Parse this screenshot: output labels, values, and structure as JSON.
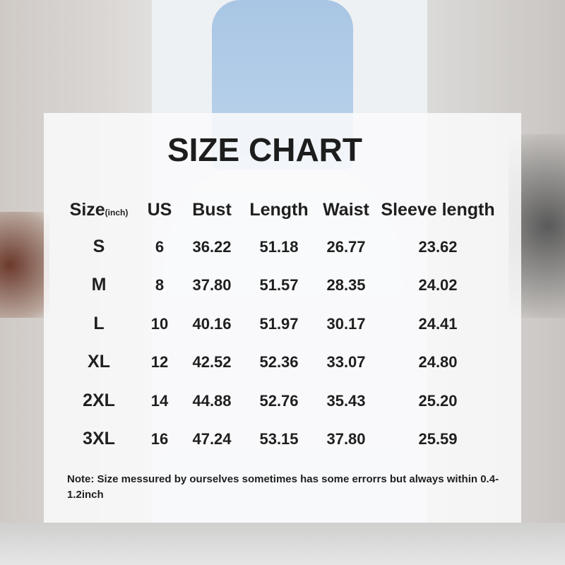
{
  "title": "SIZE CHART",
  "table": {
    "headers": [
      "Size",
      "US",
      "Bust",
      "Length",
      "Waist",
      "Sleeve length"
    ],
    "size_unit": "(inch)",
    "rows": [
      [
        "S",
        "6",
        "36.22",
        "51.18",
        "26.77",
        "23.62"
      ],
      [
        "M",
        "8",
        "37.80",
        "51.57",
        "28.35",
        "24.02"
      ],
      [
        "L",
        "10",
        "40.16",
        "51.97",
        "30.17",
        "24.41"
      ],
      [
        "XL",
        "12",
        "42.52",
        "52.36",
        "33.07",
        "24.80"
      ],
      [
        "2XL",
        "14",
        "44.88",
        "52.76",
        "35.43",
        "25.20"
      ],
      [
        "3XL",
        "16",
        "47.24",
        "53.15",
        "37.80",
        "25.59"
      ]
    ]
  },
  "note": "Note:  Size messured by ourselves sometimes has some errorrs but always within 0.4-1.2inch"
}
